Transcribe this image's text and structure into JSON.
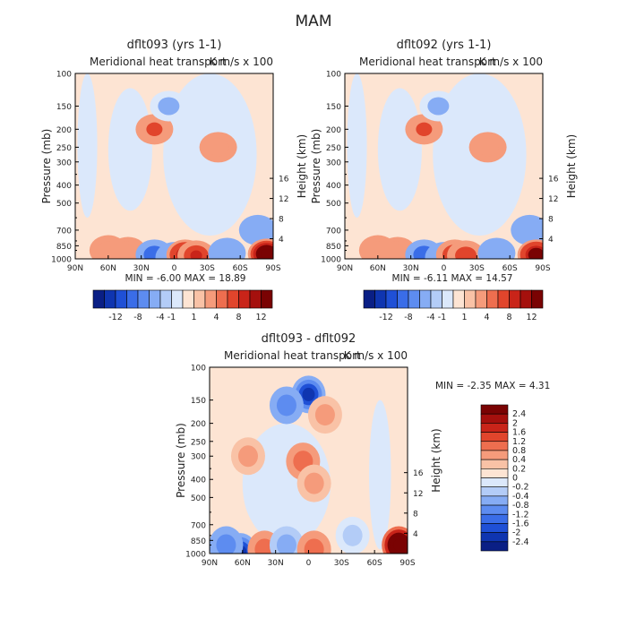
{
  "title": "MAM",
  "chart_data": [
    {
      "type": "heatmap",
      "title": "dflt093 (yrs 1-1)",
      "subtitle": "Meridional heat transport",
      "units": "K m/s x 100",
      "xlabel": "",
      "ylabel": "Pressure (mb)",
      "y2label": "Height (km)",
      "x_ticks": [
        "90N",
        "60N",
        "30N",
        "0",
        "30S",
        "60S",
        "90S"
      ],
      "y_ticks": [
        "100",
        "150",
        "200",
        "250",
        "300",
        "400",
        "500",
        "700",
        "850",
        "1000"
      ],
      "y2_ticks": [
        "16",
        "12",
        "8",
        "4"
      ],
      "ylim": [
        100,
        1000
      ],
      "min_label": "MIN = -6.00",
      "max_label": "MAX = 18.89",
      "levels": [
        "-12",
        "-8",
        "-4",
        "-1",
        "1",
        "4",
        "8",
        "12"
      ],
      "features": [
        {
          "lat": 18,
          "p": 200,
          "value": 4
        },
        {
          "lat": -40,
          "p": 250,
          "value": 2
        },
        {
          "lat": 5,
          "p": 150,
          "value": -1.5
        },
        {
          "lat": 60,
          "p": 900,
          "value": 2
        },
        {
          "lat": 42,
          "p": 920,
          "value": 3
        },
        {
          "lat": 18,
          "p": 950,
          "value": -6
        },
        {
          "lat": 0,
          "p": 980,
          "value": -4
        },
        {
          "lat": -10,
          "p": 950,
          "value": 10
        },
        {
          "lat": -20,
          "p": 960,
          "value": 8
        },
        {
          "lat": -48,
          "p": 930,
          "value": -4
        },
        {
          "lat": -76,
          "p": 700,
          "value": -4
        },
        {
          "lat": -84,
          "p": 940,
          "value": 18.89
        }
      ]
    },
    {
      "type": "heatmap",
      "title": "dflt092 (yrs 1-1)",
      "subtitle": "Meridional heat transport",
      "units": "K m/s x 100",
      "xlabel": "",
      "ylabel": "Pressure (mb)",
      "y2label": "Height (km)",
      "x_ticks": [
        "90N",
        "60N",
        "30N",
        "0",
        "30S",
        "60S",
        "90S"
      ],
      "y_ticks": [
        "100",
        "150",
        "200",
        "250",
        "300",
        "400",
        "500",
        "700",
        "850",
        "1000"
      ],
      "y2_ticks": [
        "16",
        "12",
        "8",
        "4"
      ],
      "ylim": [
        100,
        1000
      ],
      "min_label": "MIN = -6.11",
      "max_label": "MAX = 14.57",
      "levels": [
        "-12",
        "-8",
        "-4",
        "-1",
        "1",
        "4",
        "8",
        "12"
      ],
      "features": [
        {
          "lat": 18,
          "p": 200,
          "value": 4
        },
        {
          "lat": -40,
          "p": 250,
          "value": 2
        },
        {
          "lat": 5,
          "p": 150,
          "value": -1.5
        },
        {
          "lat": 60,
          "p": 900,
          "value": 2
        },
        {
          "lat": 42,
          "p": 920,
          "value": 3
        },
        {
          "lat": 18,
          "p": 950,
          "value": -6
        },
        {
          "lat": 0,
          "p": 980,
          "value": -4
        },
        {
          "lat": -10,
          "p": 950,
          "value": 9
        },
        {
          "lat": -20,
          "p": 960,
          "value": 7
        },
        {
          "lat": -48,
          "p": 930,
          "value": -4
        },
        {
          "lat": -78,
          "p": 700,
          "value": -4
        },
        {
          "lat": -84,
          "p": 950,
          "value": 14.57
        }
      ]
    },
    {
      "type": "heatmap",
      "title": "dflt093 - dflt092",
      "subtitle": "Meridional heat transport",
      "units": "K m/s x 100",
      "xlabel": "",
      "ylabel": "Pressure (mb)",
      "y2label": "Height (km)",
      "x_ticks": [
        "90N",
        "60N",
        "30N",
        "0",
        "30S",
        "60S",
        "90S"
      ],
      "y_ticks": [
        "100",
        "150",
        "200",
        "250",
        "300",
        "400",
        "500",
        "700",
        "850",
        "1000"
      ],
      "y2_ticks": [
        "16",
        "12",
        "8",
        "4"
      ],
      "ylim": [
        100,
        1000
      ],
      "min_label": "MIN = -2.35",
      "max_label": "MAX = 4.31",
      "levels": [
        "2.4",
        "2",
        "1.6",
        "1.2",
        "0.8",
        "0.4",
        "0.2",
        "0",
        "-0.2",
        "-0.4",
        "-0.8",
        "-1.2",
        "-1.6",
        "-2",
        "-2.4"
      ],
      "features": [
        {
          "lat": 0,
          "p": 140,
          "value": -2.35
        },
        {
          "lat": 20,
          "p": 160,
          "value": -1.2
        },
        {
          "lat": -15,
          "p": 180,
          "value": 0.6
        },
        {
          "lat": 5,
          "p": 320,
          "value": 0.8
        },
        {
          "lat": -5,
          "p": 420,
          "value": 0.6
        },
        {
          "lat": 55,
          "p": 300,
          "value": 0.4
        },
        {
          "lat": 62,
          "p": 980,
          "value": -2.2
        },
        {
          "lat": 75,
          "p": 900,
          "value": -1.2
        },
        {
          "lat": 40,
          "p": 950,
          "value": 0.8
        },
        {
          "lat": 20,
          "p": 900,
          "value": -0.6
        },
        {
          "lat": -5,
          "p": 950,
          "value": 0.8
        },
        {
          "lat": -40,
          "p": 800,
          "value": -0.4
        },
        {
          "lat": -82,
          "p": 900,
          "value": 4.31
        }
      ]
    }
  ]
}
